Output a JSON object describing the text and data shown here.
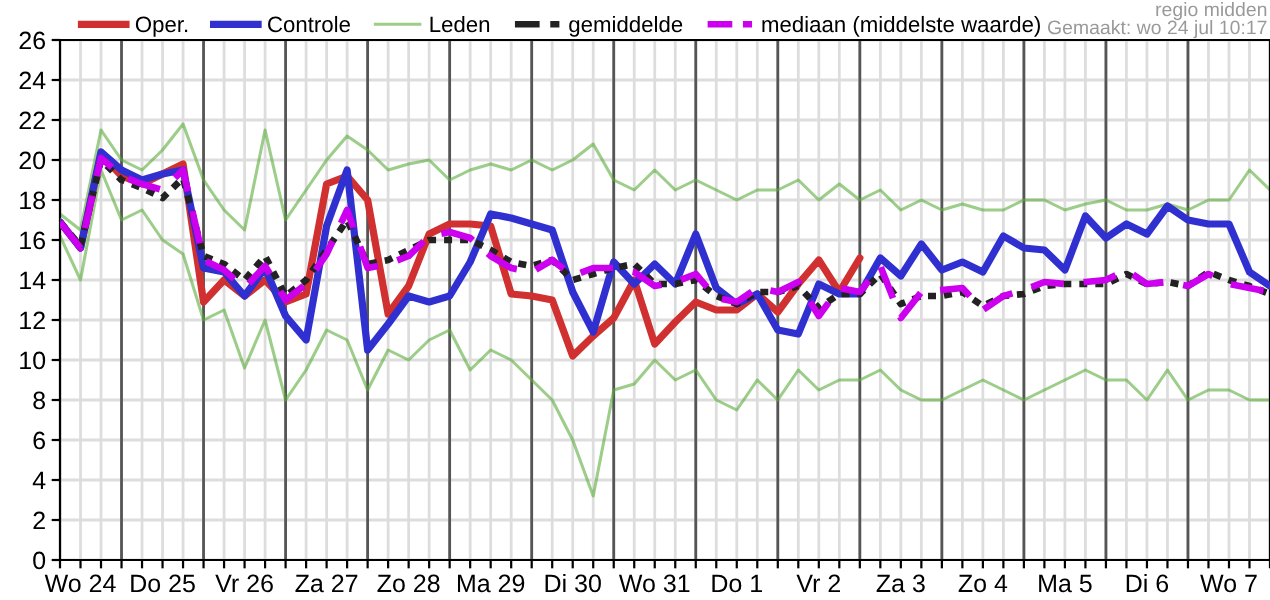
{
  "chart_data": {
    "type": "line",
    "annotations": [
      "regio midden",
      "Gemaakt: wo 24 jul 10:17"
    ],
    "categories": [
      null,
      "Wo 24",
      null,
      null,
      null,
      "Do 25",
      null,
      null,
      null,
      "Vr 26",
      null,
      null,
      null,
      "Za 27",
      null,
      null,
      null,
      "Zo 28",
      null,
      null,
      null,
      "Ma 29",
      null,
      null,
      null,
      "Di 30",
      null,
      null,
      null,
      "Wo 31",
      null,
      null,
      null,
      "Do 1",
      null,
      null,
      null,
      "Vr 2",
      null,
      null,
      null,
      "Za 3",
      null,
      null,
      null,
      "Zo 4",
      null,
      null,
      null,
      "Ma 5",
      null,
      null,
      null,
      "Di 6",
      null,
      null,
      null,
      "Wo 7",
      null,
      null
    ],
    "ylim": [
      0,
      26
    ],
    "yticks": [
      0,
      2,
      4,
      6,
      8,
      10,
      12,
      14,
      16,
      18,
      20,
      22,
      24,
      26
    ],
    "grid": true,
    "legend": "top",
    "marker": "none",
    "series": [
      {
        "name": "Oper.",
        "color": "#d03030",
        "line_style": "solid",
        "values": [
          16.9,
          15.6,
          20.3,
          19.2,
          18.8,
          19.3,
          19.8,
          12.9,
          14.0,
          13.2,
          14.0,
          12.9,
          13.3,
          18.8,
          19.2,
          18.0,
          12.3,
          13.7,
          16.3,
          16.8,
          16.8,
          16.7,
          13.3,
          13.2,
          13.0,
          10.2,
          11.2,
          12.1,
          14.0,
          10.8,
          11.9,
          12.9,
          12.5,
          12.5,
          13.3,
          12.4,
          13.8,
          15.0,
          13.4,
          15.1,
          null,
          null,
          null,
          null,
          null,
          null,
          null,
          null,
          null,
          null,
          null,
          null,
          null,
          null,
          null,
          null,
          null,
          null,
          null,
          null
        ]
      },
      {
        "name": "Controle",
        "color": "#3030d0",
        "line_style": "solid",
        "values": [
          16.9,
          15.6,
          20.4,
          19.5,
          19.0,
          19.3,
          19.5,
          14.6,
          14.4,
          13.2,
          14.6,
          12.2,
          11.0,
          16.7,
          19.5,
          10.5,
          11.8,
          13.2,
          12.9,
          13.2,
          14.9,
          17.3,
          17.1,
          16.8,
          16.5,
          13.4,
          11.4,
          14.9,
          13.8,
          14.8,
          13.8,
          16.3,
          13.6,
          12.8,
          13.3,
          11.5,
          11.3,
          13.8,
          13.3,
          13.3,
          15.1,
          14.2,
          15.8,
          14.5,
          14.9,
          14.4,
          16.2,
          15.6,
          15.5,
          14.5,
          17.2,
          16.1,
          16.8,
          16.3,
          17.7,
          17.0,
          16.8,
          16.8,
          14.4,
          13.7
        ]
      },
      {
        "name": "Leden",
        "color": "#5aab3a",
        "line_style": "solid",
        "values": [
          17.3,
          16.5,
          21.5,
          20.0,
          19.5,
          20.5,
          21.8,
          19.0,
          17.5,
          16.5,
          21.5,
          17.0,
          18.5,
          20.0,
          21.2,
          20.5,
          19.5,
          19.8,
          20.0,
          19.0,
          19.5,
          19.8,
          19.5,
          20.0,
          19.5,
          20.0,
          20.8,
          19.0,
          18.5,
          19.5,
          18.5,
          19.0,
          18.5,
          18.0,
          18.5,
          18.5,
          19.0,
          18.0,
          18.8,
          18.0,
          18.5,
          17.5,
          18.0,
          17.5,
          17.8,
          17.5,
          17.5,
          18.0,
          18.0,
          17.5,
          17.8,
          18.0,
          17.5,
          17.5,
          17.8,
          17.5,
          18.0,
          18.0,
          19.5,
          18.5
        ]
      },
      {
        "color": "#5aab3a",
        "line_style": "solid",
        "values": [
          16.2,
          14.0,
          19.5,
          17.0,
          17.5,
          16.0,
          15.3,
          12.0,
          12.5,
          9.6,
          12.0,
          8.0,
          9.5,
          11.5,
          11.0,
          8.5,
          10.5,
          10.0,
          11.0,
          11.5,
          9.5,
          10.5,
          10.0,
          9.0,
          8.0,
          6.0,
          3.2,
          8.5,
          8.8,
          10.0,
          9.0,
          9.5,
          8.0,
          7.5,
          9.0,
          8.0,
          9.5,
          8.5,
          9.0,
          9.0,
          9.5,
          8.5,
          8.0,
          8.0,
          8.5,
          9.0,
          8.5,
          8.0,
          8.5,
          9.0,
          9.5,
          9.0,
          9.0,
          8.0,
          9.5,
          8.0,
          8.5,
          8.5,
          8.0,
          8.0
        ]
      },
      {
        "name": "gemiddelde",
        "color": "#222222",
        "line_style": "dotted",
        "values": [
          16.9,
          15.7,
          20.0,
          19.0,
          18.6,
          18.1,
          19.1,
          15.2,
          14.8,
          14.0,
          15.2,
          13.2,
          14.0,
          15.5,
          17.0,
          14.8,
          15.0,
          15.5,
          16.0,
          16.0,
          16.0,
          15.5,
          14.9,
          14.7,
          15.0,
          14.0,
          14.3,
          14.6,
          14.8,
          13.8,
          13.8,
          14.0,
          13.2,
          12.8,
          13.4,
          13.4,
          13.7,
          12.6,
          13.3,
          13.3,
          14.3,
          12.8,
          13.2,
          13.2,
          13.4,
          12.7,
          13.2,
          13.3,
          13.7,
          13.8,
          13.8,
          13.8,
          14.3,
          13.8,
          13.9,
          13.7,
          14.4,
          14.0,
          13.7,
          13.3
        ]
      },
      {
        "name": "mediaan (middelste waarde)",
        "color": "#cc00ee",
        "line_style": "dashed",
        "values": [
          16.9,
          15.6,
          20.1,
          19.2,
          18.8,
          18.5,
          19.5,
          15.0,
          14.5,
          13.6,
          14.7,
          13.0,
          13.8,
          15.3,
          17.5,
          14.6,
          14.8,
          15.2,
          16.2,
          16.4,
          16.1,
          15.2,
          14.6,
          14.4,
          15.0,
          14.2,
          14.6,
          14.6,
          14.4,
          13.7,
          13.9,
          14.3,
          13.1,
          12.9,
          13.6,
          13.4,
          13.9,
          12.2,
          13.6,
          13.4,
          14.7,
          12.1,
          13.4,
          13.5,
          13.6,
          12.5,
          13.2,
          13.5,
          13.9,
          13.8,
          13.9,
          14.0,
          14.5,
          13.8,
          13.9,
          13.7,
          14.3,
          13.8,
          13.6,
          13.4
        ]
      }
    ]
  }
}
